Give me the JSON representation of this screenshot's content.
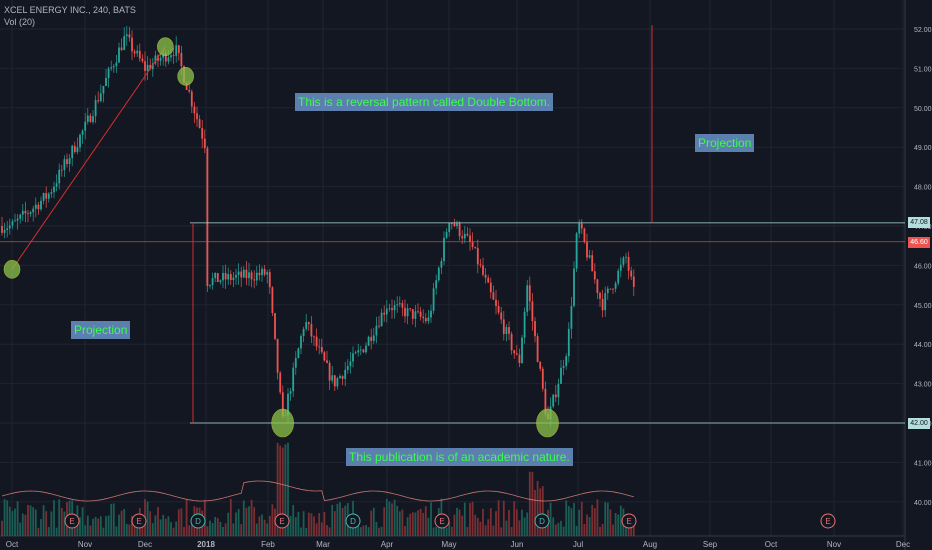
{
  "header": {
    "symbol_line": "XCEL ENERGY INC., 240, BATS",
    "volume_line": "Vol (20)"
  },
  "annotations": {
    "title_note": "This is a reversal pattern called Double Bottom.",
    "projection_left": "Projection",
    "projection_right": "Projection",
    "disclaimer": "This publication is of an academic nature."
  },
  "price_labels": {
    "resistance": "47.08",
    "current": "46.60",
    "support": "42.00"
  },
  "colors": {
    "background": "#131722",
    "up_candle": "#26a69a",
    "down_candle": "#ef5350",
    "trend_line": "#d32f2f",
    "level_line": "#b2dfdb",
    "current_line": "#ef5350",
    "note_bg": "#5b7fae",
    "note_text": "#3aff4a",
    "marker_fill": "#8bc34a"
  },
  "chart_data": {
    "type": "candlestick",
    "title": "XCEL ENERGY INC., 240, BATS",
    "x_ticks": [
      "Oct",
      "Nov",
      "Dec",
      "2018",
      "Feb",
      "Mar",
      "Apr",
      "May",
      "Jun",
      "Jul",
      "Aug",
      "Sep",
      "Oct",
      "Nov",
      "Dec"
    ],
    "y_ticks": [
      "52.00",
      "51.00",
      "50.00",
      "49.00",
      "48.00",
      "47.00",
      "46.00",
      "45.00",
      "44.00",
      "43.00",
      "42.00",
      "41.00",
      "40.00"
    ],
    "ylim": [
      39.7,
      52.3
    ],
    "price_path": [
      [
        "Oct",
        47.0
      ],
      [
        "Oct 15",
        47.8
      ],
      [
        "Nov",
        49.5
      ],
      [
        "Nov 20",
        51.8
      ],
      [
        "Dec",
        51.0
      ],
      [
        "Dec 15",
        51.5
      ],
      [
        "2018",
        49.0
      ],
      [
        "Jan 20",
        45.2
      ],
      [
        "Feb",
        45.8
      ],
      [
        "Feb 8",
        42.0
      ],
      [
        "Feb 20",
        44.6
      ],
      [
        "Mar 5",
        43.0
      ],
      [
        "Mar 20",
        44.0
      ],
      [
        "Apr",
        45.0
      ],
      [
        "Apr 20",
        44.6
      ],
      [
        "May",
        47.2
      ],
      [
        "May 10",
        46.5
      ],
      [
        "May 20",
        45.0
      ],
      [
        "Jun 1",
        43.5
      ],
      [
        "Jun 5",
        45.5
      ],
      [
        "Jun 15",
        42.0
      ],
      [
        "Jun 25",
        44.0
      ],
      [
        "Jul",
        47.1
      ],
      [
        "Jul 10",
        45.0
      ],
      [
        "Jul 20",
        46.2
      ],
      [
        "Jul 25",
        44.8
      ],
      [
        "Aug",
        46.6
      ]
    ],
    "levels": {
      "resistance": 47.08,
      "last_price": 46.6,
      "support": 42.0
    },
    "double_bottom_markers": [
      [
        "Dec 10",
        51.55
      ],
      [
        "Dec 20",
        50.8
      ],
      [
        "Jan 30",
        45.9
      ],
      [
        "Feb 8",
        42.0
      ],
      [
        "Jun 15",
        42.0
      ]
    ],
    "trend_line": [
      [
        "Dec 10",
        51.55
      ],
      [
        "Jan 30",
        45.9
      ]
    ],
    "projection_left": {
      "from": 47.08,
      "to": 42.0
    },
    "projection_right": {
      "from": 47.08,
      "to": 52.1
    },
    "earnings_markers": [
      "E",
      "E",
      "D",
      "E",
      "D",
      "E",
      "D",
      "E",
      "E",
      "E"
    ],
    "volume_series": "Vol (20)",
    "grid": true
  }
}
